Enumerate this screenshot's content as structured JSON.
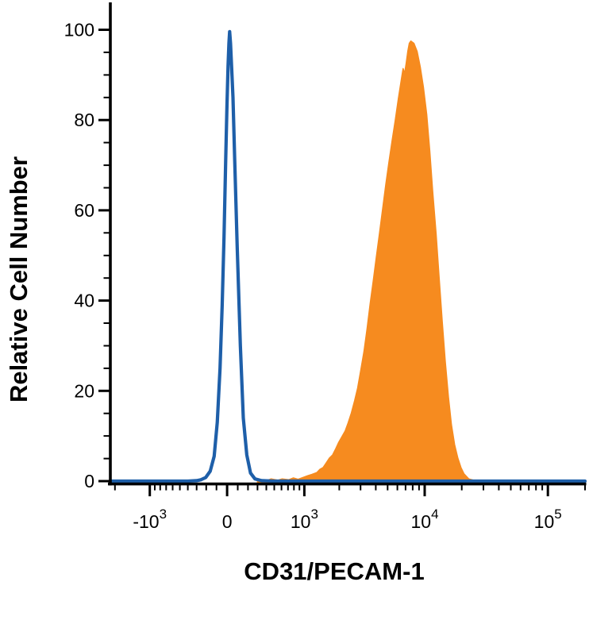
{
  "chart_data": {
    "type": "area",
    "subtype": "flow-cytometry-histogram",
    "title": "",
    "xlabel": "CD31/PECAM-1",
    "ylabel": "Relative Cell Number",
    "background_color": "#ffffff",
    "axis_color": "#000000",
    "grid": false,
    "legend": "none",
    "x_scale": {
      "type": "biexponential",
      "asinh_cofactor": 500,
      "domain_min": -2200,
      "domain_max": 200000,
      "major_ticks": [
        {
          "value": -1000,
          "label_base": "-10",
          "label_exp": "3"
        },
        {
          "value": 0,
          "label_base": "0",
          "label_exp": ""
        },
        {
          "value": 1000,
          "label_base": "10",
          "label_exp": "3"
        },
        {
          "value": 10000,
          "label_base": "10",
          "label_exp": "4"
        },
        {
          "value": 100000,
          "label_base": "10",
          "label_exp": "5"
        }
      ],
      "minor_ticks": [
        -2000,
        -900,
        -800,
        -700,
        -600,
        -500,
        -400,
        -300,
        -200,
        -100,
        100,
        200,
        300,
        400,
        500,
        600,
        700,
        800,
        900,
        2000,
        3000,
        4000,
        5000,
        6000,
        7000,
        8000,
        9000,
        20000,
        30000,
        40000,
        50000,
        60000,
        70000,
        80000,
        90000,
        200000
      ]
    },
    "y_scale": {
      "min": 0,
      "max": 105,
      "major_ticks": [
        0,
        20,
        40,
        60,
        80,
        100
      ],
      "minor_step": 5
    },
    "series": [
      {
        "id": "filled-orange-histogram",
        "name": "filled orange histogram",
        "style": "filled",
        "color": "#f68b1f",
        "peak": {
          "x": 7700,
          "y": 97.5
        },
        "points": [
          [
            300,
            0
          ],
          [
            330,
            0.3
          ],
          [
            400,
            0.1
          ],
          [
            460,
            0.5
          ],
          [
            550,
            0.2
          ],
          [
            610,
            0.5
          ],
          [
            710,
            0.3
          ],
          [
            790,
            0.7
          ],
          [
            875,
            0.4
          ],
          [
            970,
            0.8
          ],
          [
            1070,
            1.2
          ],
          [
            1170,
            1.5
          ],
          [
            1290,
            1.9
          ],
          [
            1370,
            2.6
          ],
          [
            1460,
            3.0
          ],
          [
            1550,
            4.0
          ],
          [
            1650,
            5.1
          ],
          [
            1760,
            5.8
          ],
          [
            1870,
            7.2
          ],
          [
            1980,
            8.6
          ],
          [
            2110,
            9.9
          ],
          [
            2240,
            11.1
          ],
          [
            2370,
            12.9
          ],
          [
            2520,
            15.1
          ],
          [
            2680,
            17.8
          ],
          [
            2840,
            20.6
          ],
          [
            3010,
            24.5
          ],
          [
            3200,
            28.7
          ],
          [
            3390,
            33.6
          ],
          [
            3600,
            39.3
          ],
          [
            3820,
            44.5
          ],
          [
            4050,
            49.8
          ],
          [
            4300,
            55.1
          ],
          [
            4560,
            60.4
          ],
          [
            4830,
            65.7
          ],
          [
            5120,
            70.6
          ],
          [
            5440,
            75.5
          ],
          [
            5760,
            79.8
          ],
          [
            6110,
            84.7
          ],
          [
            6480,
            89.1
          ],
          [
            6680,
            91.4
          ],
          [
            6870,
            90.3
          ],
          [
            7080,
            92.6
          ],
          [
            7290,
            95.2
          ],
          [
            7500,
            97.0
          ],
          [
            7730,
            97.5
          ],
          [
            8190,
            97.0
          ],
          [
            8690,
            95.2
          ],
          [
            9220,
            91.7
          ],
          [
            9770,
            87.3
          ],
          [
            10400,
            81.2
          ],
          [
            11000,
            73.2
          ],
          [
            11600,
            64.4
          ],
          [
            12400,
            54.8
          ],
          [
            13100,
            45.1
          ],
          [
            13900,
            35.4
          ],
          [
            14700,
            26.6
          ],
          [
            15600,
            18.7
          ],
          [
            16500,
            12.5
          ],
          [
            17500,
            8.1
          ],
          [
            18600,
            5.1
          ],
          [
            19700,
            3.0
          ],
          [
            20900,
            1.6
          ],
          [
            22800,
            0.5
          ],
          [
            24900,
            0.2
          ],
          [
            28000,
            0
          ]
        ]
      },
      {
        "id": "open-blue-histogram",
        "name": "open blue histogram",
        "style": "line",
        "color": "#1e5fa9",
        "stroke_width": 4.2,
        "peak": {
          "x": 24,
          "y": 99.6
        },
        "points": [
          [
            -2200,
            0
          ],
          [
            -400,
            0
          ],
          [
            -300,
            0.1
          ],
          [
            -255,
            0.3
          ],
          [
            -205,
            0.8
          ],
          [
            -160,
            2.2
          ],
          [
            -122,
            5.5
          ],
          [
            -92,
            13
          ],
          [
            -66,
            25
          ],
          [
            -46,
            39
          ],
          [
            -29,
            54
          ],
          [
            -13,
            71
          ],
          [
            -1,
            83
          ],
          [
            9,
            92
          ],
          [
            17,
            97
          ],
          [
            24,
            99.6
          ],
          [
            32,
            97
          ],
          [
            42,
            92
          ],
          [
            55,
            85
          ],
          [
            72,
            71
          ],
          [
            95,
            52
          ],
          [
            125,
            30
          ],
          [
            154,
            14
          ],
          [
            188,
            5.8
          ],
          [
            226,
            1.8
          ],
          [
            272,
            0.5
          ],
          [
            345,
            0.1
          ],
          [
            500,
            0
          ],
          [
            2000,
            0
          ],
          [
            200000,
            0
          ]
        ]
      }
    ]
  }
}
